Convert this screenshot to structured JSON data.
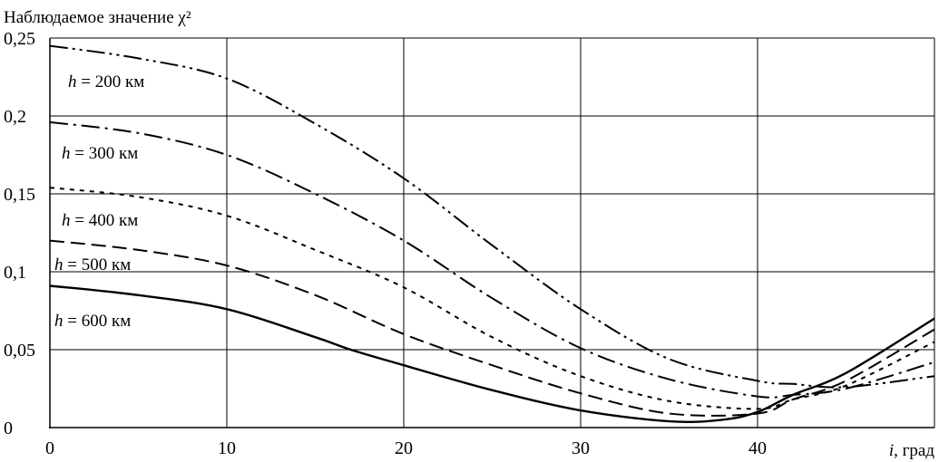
{
  "chart_data": {
    "type": "line",
    "ylabel": "Наблюдаемое значение χ²",
    "xlabel": "i, град",
    "xlim": [
      0,
      50
    ],
    "ylim": [
      0,
      0.25
    ],
    "xticks": [
      0,
      10,
      20,
      30,
      40
    ],
    "xtick_labels": [
      "0",
      "10",
      "20",
      "30",
      "40"
    ],
    "yticks": [
      0,
      0.05,
      0.1,
      0.15,
      0.2,
      0.25
    ],
    "ytick_labels": [
      "0",
      "0,05",
      "0,1",
      "0,15",
      "0,2",
      "0,25"
    ],
    "grid": true,
    "series": [
      {
        "name": "h = 200 км",
        "label_var": "h",
        "label_rest": " = 200 км",
        "dash": "dash-dot-dot",
        "x": [
          0,
          5,
          10,
          15,
          20,
          25,
          30,
          35,
          40,
          42,
          45,
          50
        ],
        "y": [
          0.245,
          0.237,
          0.224,
          0.195,
          0.16,
          0.117,
          0.076,
          0.044,
          0.03,
          0.028,
          0.026,
          0.033
        ]
      },
      {
        "name": "h = 300 км",
        "label_var": "h",
        "label_rest": " = 300 км",
        "dash": "dash-dot",
        "x": [
          0,
          5,
          10,
          15,
          20,
          25,
          30,
          35,
          40,
          42,
          45,
          50
        ],
        "y": [
          0.196,
          0.189,
          0.175,
          0.15,
          0.12,
          0.083,
          0.051,
          0.031,
          0.02,
          0.021,
          0.025,
          0.042
        ]
      },
      {
        "name": "h = 400 км",
        "label_var": "h",
        "label_rest": " = 400 км",
        "dash": "dotted",
        "x": [
          0,
          5,
          10,
          15,
          20,
          25,
          30,
          35,
          40,
          42,
          45,
          50
        ],
        "y": [
          0.154,
          0.148,
          0.136,
          0.114,
          0.09,
          0.058,
          0.033,
          0.017,
          0.012,
          0.018,
          0.027,
          0.055
        ]
      },
      {
        "name": "h = 500 км",
        "label_var": "h",
        "label_rest": " = 500 км",
        "dash": "dashed",
        "x": [
          0,
          5,
          10,
          15,
          20,
          25,
          30,
          35,
          40,
          42,
          45,
          50
        ],
        "y": [
          0.12,
          0.114,
          0.104,
          0.085,
          0.06,
          0.04,
          0.022,
          0.009,
          0.009,
          0.018,
          0.03,
          0.063
        ]
      },
      {
        "name": "h = 600 км",
        "label_var": "h",
        "label_rest": " = 600 км",
        "dash": "solid",
        "x": [
          0,
          5,
          10,
          15,
          17,
          20,
          25,
          30,
          35,
          38,
          40,
          42,
          45,
          50
        ],
        "y": [
          0.091,
          0.085,
          0.076,
          0.058,
          0.05,
          0.04,
          0.024,
          0.011,
          0.004,
          0.005,
          0.01,
          0.021,
          0.035,
          0.07
        ]
      }
    ]
  }
}
